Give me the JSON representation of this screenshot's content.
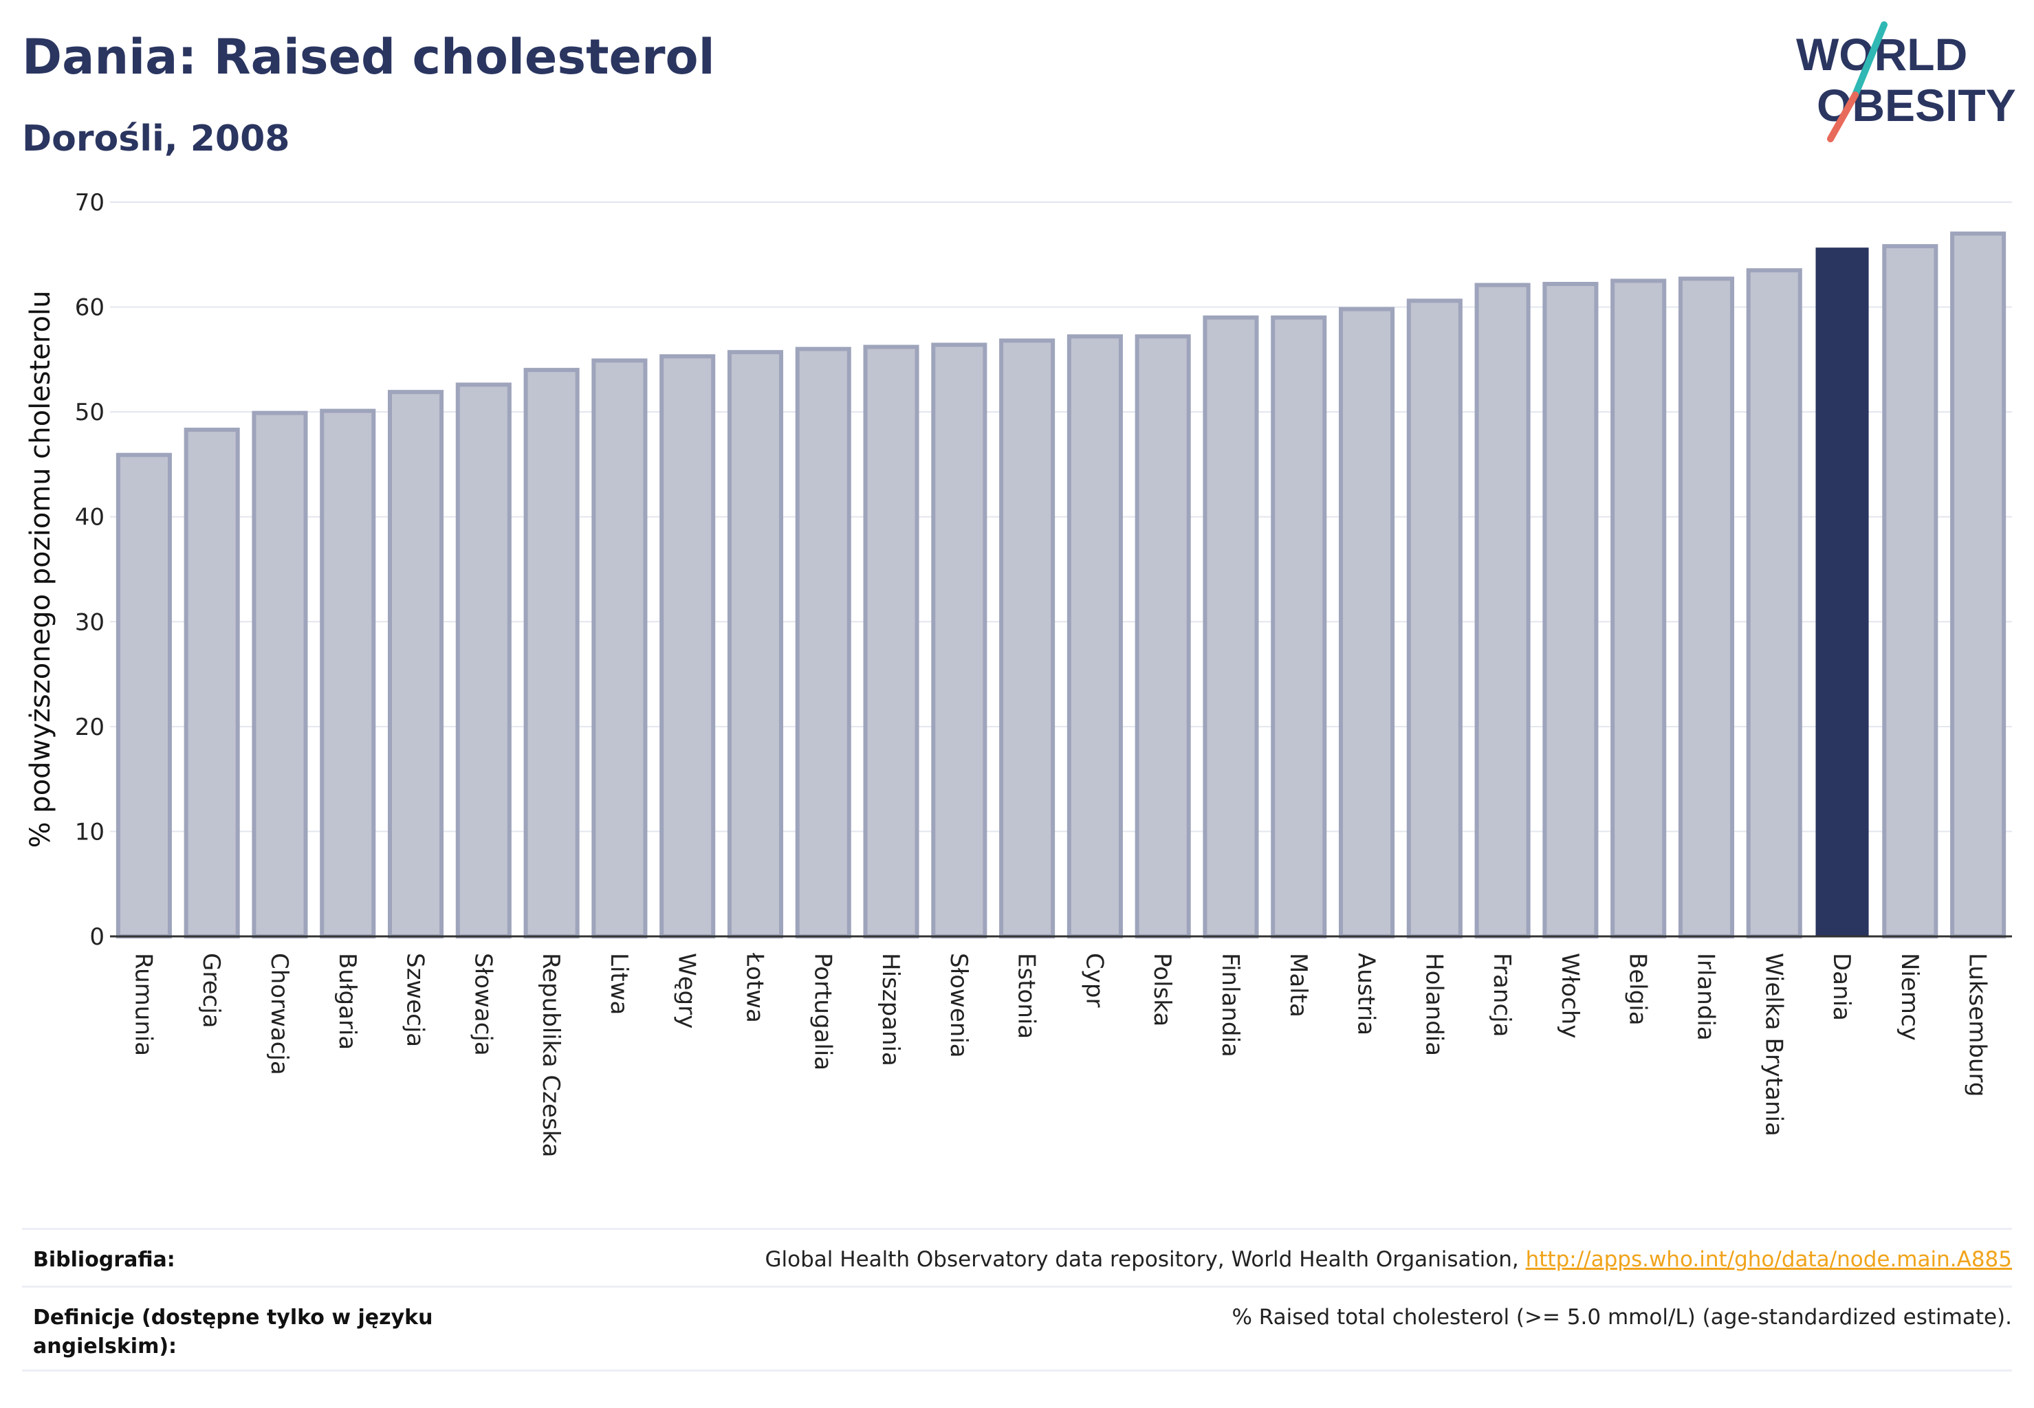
{
  "title": "Dania: Raised cholesterol",
  "subtitle": "Dorośli, 2008",
  "logo": {
    "line1": "WORLD",
    "line2": "OBESITY"
  },
  "chart_data": {
    "type": "bar",
    "ylabel": "% podwyższonego poziomu cholesterolu",
    "ylim": [
      0,
      70
    ],
    "yticks": [
      0,
      10,
      20,
      30,
      40,
      50,
      60,
      70
    ],
    "highlight": "Dania",
    "colors": {
      "bar_fill": "#c0c3d0",
      "bar_edge": "#9ea4bb",
      "highlight": "#2a3560",
      "grid": "#e3e6ee"
    },
    "categories": [
      "Rumunia",
      "Grecja",
      "Chorwacja",
      "Bułgaria",
      "Szwecja",
      "Słowacja",
      "Republika Czeska",
      "Litwa",
      "Węgry",
      "Łotwa",
      "Portugalia",
      "Hiszpania",
      "Słowenia",
      "Estonia",
      "Cypr",
      "Polska",
      "Finlandia",
      "Malta",
      "Austria",
      "Holandia",
      "Francja",
      "Włochy",
      "Belgia",
      "Irlandia",
      "Wielka Brytania",
      "Dania",
      "Niemcy",
      "Luksemburg"
    ],
    "values": [
      45.9,
      48.3,
      49.9,
      50.1,
      51.9,
      52.6,
      54.0,
      54.9,
      55.3,
      55.7,
      56.0,
      56.2,
      56.4,
      56.8,
      57.2,
      57.2,
      59.0,
      59.0,
      59.8,
      60.6,
      62.1,
      62.2,
      62.5,
      62.7,
      63.5,
      65.6,
      65.8,
      67.0
    ]
  },
  "footer": {
    "bibliography_label": "Bibliografia:",
    "bibliography_text": "Global Health Observatory data repository, World Health Organisation, ",
    "bibliography_link": "http://apps.who.int/gho/data/node.main.A885",
    "definitions_label": "Definicje (dostępne tylko w języku angielskim):",
    "definitions_text": "% Raised total cholesterol (>= 5.0 mmol/L) (age-standardized estimate)."
  }
}
